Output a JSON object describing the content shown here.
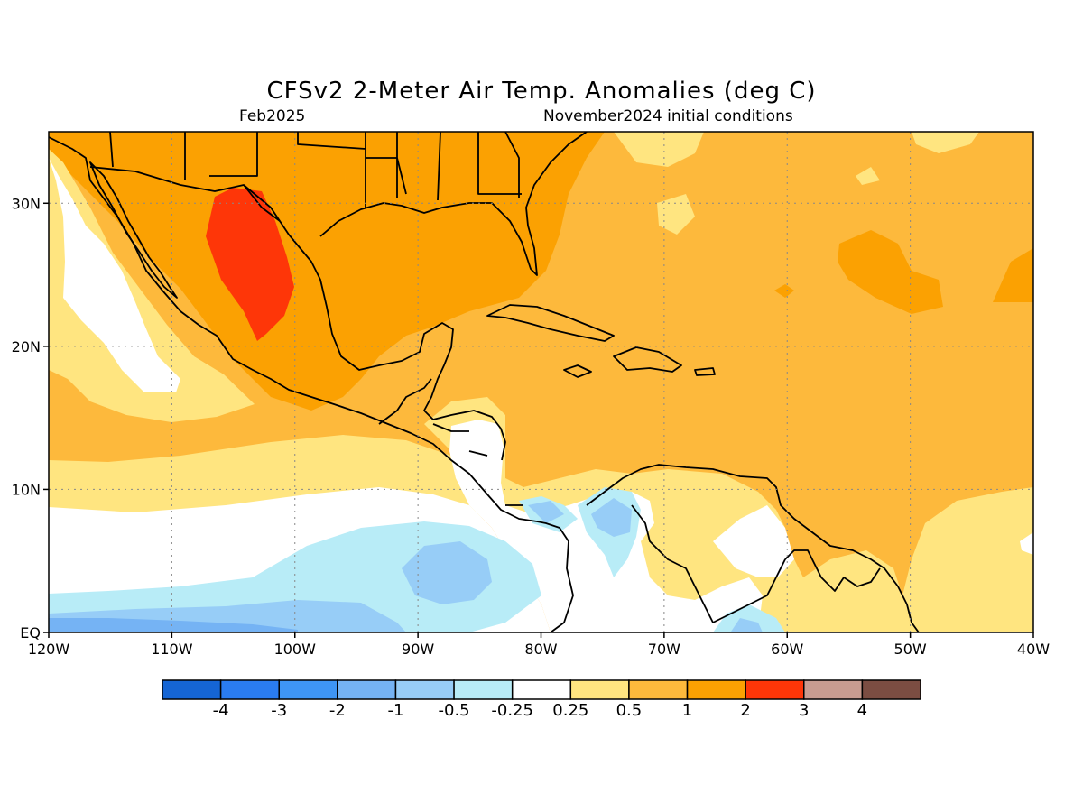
{
  "title": "CFSv2 2-Meter Air Temp. Anomalies (deg C)",
  "subtitle_left": "Feb2025",
  "subtitle_right": "November2024 initial conditions",
  "map": {
    "lon_range": [
      -120,
      -40
    ],
    "lat_range": [
      0,
      35
    ],
    "lon_ticks": [
      {
        "value": -120,
        "label": "120W"
      },
      {
        "value": -110,
        "label": "110W"
      },
      {
        "value": -100,
        "label": "100W"
      },
      {
        "value": -90,
        "label": "90W"
      },
      {
        "value": -80,
        "label": "80W"
      },
      {
        "value": -70,
        "label": "70W"
      },
      {
        "value": -60,
        "label": "60W"
      },
      {
        "value": -50,
        "label": "50W"
      },
      {
        "value": -40,
        "label": "40W"
      }
    ],
    "lat_ticks": [
      {
        "value": 0,
        "label": "EQ"
      },
      {
        "value": 10,
        "label": "10N"
      },
      {
        "value": 20,
        "label": "20N"
      },
      {
        "value": 30,
        "label": "30N"
      }
    ],
    "grid": true
  },
  "colorbar": {
    "colors": [
      "#1565d4",
      "#2a7cf0",
      "#3e95f5",
      "#75b3f4",
      "#97cdf7",
      "#b8ecf7",
      "#ffffff",
      "#ffe580",
      "#fdb93c",
      "#fba102",
      "#fe3608",
      "#c89c90",
      "#7b4d42"
    ],
    "labels": [
      "-4",
      "-3",
      "-2",
      "-1",
      "-0.5",
      "-0.25",
      "0.25",
      "0.5",
      "1",
      "2",
      "3",
      "4"
    ]
  }
}
